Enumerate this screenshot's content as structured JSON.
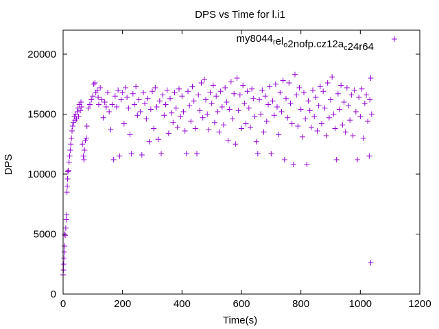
{
  "chart_data": {
    "type": "scatter",
    "title": "DPS vs Time for l.i1",
    "xlabel": "Time(s)",
    "ylabel": "DPS",
    "xlim": [
      0,
      1200
    ],
    "ylim": [
      0,
      22000
    ],
    "xticks": [
      0,
      200,
      400,
      600,
      800,
      1000,
      1200
    ],
    "yticks": [
      0,
      5000,
      10000,
      15000,
      20000
    ],
    "grid": false,
    "legend_placement": "top-right",
    "series": [
      {
        "name": "my8044_rel_o2nofp.cz12a_c24r64",
        "legend_parts": [
          {
            "t": "my8044",
            "sub": false
          },
          {
            "t": "r",
            "sub": true
          },
          {
            "t": "el",
            "sub": false
          },
          {
            "t": "o",
            "sub": true
          },
          {
            "t": "2nofp.cz12a",
            "sub": false
          },
          {
            "t": "c",
            "sub": true
          },
          {
            "t": "24r64",
            "sub": false
          }
        ],
        "color": "#9400D3",
        "marker": "plus",
        "points": [
          [
            0,
            1600
          ],
          [
            1,
            2000
          ],
          [
            2,
            2500
          ],
          [
            3,
            3000
          ],
          [
            4,
            3500
          ],
          [
            5,
            4000
          ],
          [
            5,
            5000
          ],
          [
            7,
            4900
          ],
          [
            9,
            5500
          ],
          [
            11,
            6200
          ],
          [
            12,
            6600
          ],
          [
            13,
            8500
          ],
          [
            14,
            9000
          ],
          [
            15,
            9600
          ],
          [
            16,
            10200
          ],
          [
            18,
            10300
          ],
          [
            20,
            11000
          ],
          [
            22,
            11500
          ],
          [
            24,
            12000
          ],
          [
            26,
            12500
          ],
          [
            28,
            13000
          ],
          [
            30,
            13600
          ],
          [
            32,
            14000
          ],
          [
            35,
            14300
          ],
          [
            38,
            14800
          ],
          [
            40,
            14500
          ],
          [
            42,
            15000
          ],
          [
            45,
            14600
          ],
          [
            48,
            15200
          ],
          [
            50,
            15500
          ],
          [
            52,
            14800
          ],
          [
            55,
            15800
          ],
          [
            58,
            15300
          ],
          [
            60,
            16000
          ],
          [
            62,
            15600
          ],
          [
            65,
            12500
          ],
          [
            68,
            11500
          ],
          [
            70,
            11200
          ],
          [
            72,
            12000
          ],
          [
            75,
            12800
          ],
          [
            78,
            13000
          ],
          [
            80,
            14000
          ],
          [
            85,
            15500
          ],
          [
            90,
            15800
          ],
          [
            95,
            16200
          ],
          [
            100,
            16500
          ],
          [
            103,
            17500
          ],
          [
            107,
            17600
          ],
          [
            110,
            16800
          ],
          [
            115,
            17000
          ],
          [
            118,
            16400
          ],
          [
            120,
            15800
          ],
          [
            125,
            17200
          ],
          [
            130,
            16200
          ],
          [
            135,
            14700
          ],
          [
            140,
            16000
          ],
          [
            145,
            15600
          ],
          [
            150,
            16800
          ],
          [
            155,
            15200
          ],
          [
            160,
            13700
          ],
          [
            165,
            15800
          ],
          [
            170,
            11200
          ],
          [
            175,
            16500
          ],
          [
            180,
            15600
          ],
          [
            185,
            17000
          ],
          [
            190,
            11500
          ],
          [
            195,
            16200
          ],
          [
            200,
            16800
          ],
          [
            205,
            14200
          ],
          [
            210,
            17200
          ],
          [
            215,
            16400
          ],
          [
            220,
            15500
          ],
          [
            225,
            13300
          ],
          [
            230,
            11700
          ],
          [
            235,
            16700
          ],
          [
            240,
            15800
          ],
          [
            245,
            17300
          ],
          [
            250,
            14900
          ],
          [
            255,
            16200
          ],
          [
            260,
            15200
          ],
          [
            265,
            11600
          ],
          [
            270,
            16800
          ],
          [
            275,
            15900
          ],
          [
            280,
            14600
          ],
          [
            285,
            16300
          ],
          [
            290,
            12700
          ],
          [
            295,
            15400
          ],
          [
            300,
            16900
          ],
          [
            305,
            13800
          ],
          [
            310,
            17200
          ],
          [
            315,
            15600
          ],
          [
            320,
            12900
          ],
          [
            325,
            16100
          ],
          [
            330,
            11700
          ],
          [
            335,
            16600
          ],
          [
            340,
            14900
          ],
          [
            345,
            15800
          ],
          [
            350,
            17000
          ],
          [
            355,
            13400
          ],
          [
            360,
            16300
          ],
          [
            365,
            15100
          ],
          [
            370,
            14300
          ],
          [
            375,
            16800
          ],
          [
            380,
            15500
          ],
          [
            385,
            13900
          ],
          [
            390,
            17100
          ],
          [
            395,
            14800
          ],
          [
            400,
            16500
          ],
          [
            405,
            15200
          ],
          [
            410,
            13600
          ],
          [
            415,
            11700
          ],
          [
            420,
            16900
          ],
          [
            425,
            15700
          ],
          [
            430,
            14400
          ],
          [
            435,
            17300
          ],
          [
            440,
            16100
          ],
          [
            445,
            13800
          ],
          [
            450,
            11700
          ],
          [
            455,
            16600
          ],
          [
            460,
            15300
          ],
          [
            465,
            17600
          ],
          [
            470,
            14700
          ],
          [
            475,
            17900
          ],
          [
            480,
            16200
          ],
          [
            485,
            15000
          ],
          [
            490,
            13700
          ],
          [
            495,
            16800
          ],
          [
            500,
            15900
          ],
          [
            505,
            17400
          ],
          [
            510,
            14300
          ],
          [
            515,
            16500
          ],
          [
            520,
            15200
          ],
          [
            525,
            13500
          ],
          [
            530,
            16900
          ],
          [
            535,
            15600
          ],
          [
            540,
            14100
          ],
          [
            545,
            17200
          ],
          [
            550,
            16000
          ],
          [
            555,
            12800
          ],
          [
            560,
            15400
          ],
          [
            565,
            17700
          ],
          [
            570,
            14600
          ],
          [
            575,
            16700
          ],
          [
            580,
            12500
          ],
          [
            585,
            18000
          ],
          [
            590,
            15300
          ],
          [
            595,
            16600
          ],
          [
            600,
            13800
          ],
          [
            605,
            17400
          ],
          [
            610,
            15900
          ],
          [
            615,
            14200
          ],
          [
            620,
            16900
          ],
          [
            625,
            15500
          ],
          [
            630,
            13900
          ],
          [
            635,
            17100
          ],
          [
            640,
            16300
          ],
          [
            645,
            14800
          ],
          [
            650,
            12700
          ],
          [
            655,
            11700
          ],
          [
            660,
            16200
          ],
          [
            665,
            15000
          ],
          [
            670,
            17000
          ],
          [
            675,
            13500
          ],
          [
            680,
            16500
          ],
          [
            685,
            14400
          ],
          [
            690,
            15800
          ],
          [
            695,
            17300
          ],
          [
            700,
            11700
          ],
          [
            705,
            16100
          ],
          [
            710,
            14900
          ],
          [
            715,
            17500
          ],
          [
            720,
            15600
          ],
          [
            725,
            13300
          ],
          [
            730,
            16800
          ],
          [
            735,
            15200
          ],
          [
            740,
            17800
          ],
          [
            745,
            11200
          ],
          [
            750,
            16300
          ],
          [
            755,
            14700
          ],
          [
            760,
            17600
          ],
          [
            765,
            15900
          ],
          [
            770,
            14200
          ],
          [
            775,
            10800
          ],
          [
            780,
            18300
          ],
          [
            785,
            16600
          ],
          [
            790,
            14000
          ],
          [
            795,
            17200
          ],
          [
            800,
            15400
          ],
          [
            805,
            13100
          ],
          [
            810,
            16800
          ],
          [
            815,
            14600
          ],
          [
            820,
            10800
          ],
          [
            825,
            16100
          ],
          [
            830,
            15300
          ],
          [
            835,
            13900
          ],
          [
            840,
            17000
          ],
          [
            845,
            14800
          ],
          [
            850,
            16400
          ],
          [
            855,
            13600
          ],
          [
            860,
            15700
          ],
          [
            865,
            17300
          ],
          [
            870,
            14200
          ],
          [
            875,
            16900
          ],
          [
            880,
            15500
          ],
          [
            885,
            13200
          ],
          [
            890,
            17600
          ],
          [
            895,
            14700
          ],
          [
            900,
            16200
          ],
          [
            905,
            18100
          ],
          [
            910,
            15000
          ],
          [
            915,
            13800
          ],
          [
            920,
            11200
          ],
          [
            925,
            16700
          ],
          [
            930,
            15400
          ],
          [
            935,
            17400
          ],
          [
            940,
            14100
          ],
          [
            945,
            16000
          ],
          [
            950,
            13500
          ],
          [
            955,
            17200
          ],
          [
            960,
            15700
          ],
          [
            965,
            14500
          ],
          [
            970,
            16600
          ],
          [
            975,
            13200
          ],
          [
            980,
            17000
          ],
          [
            985,
            15200
          ],
          [
            990,
            11200
          ],
          [
            995,
            16400
          ],
          [
            1000,
            14800
          ],
          [
            1005,
            17100
          ],
          [
            1010,
            13000
          ],
          [
            1015,
            15900
          ],
          [
            1020,
            16600
          ],
          [
            1025,
            14400
          ],
          [
            1030,
            11500
          ],
          [
            1032,
            16200
          ],
          [
            1035,
            18000
          ],
          [
            1035,
            2600
          ],
          [
            1038,
            15000
          ]
        ]
      }
    ]
  }
}
